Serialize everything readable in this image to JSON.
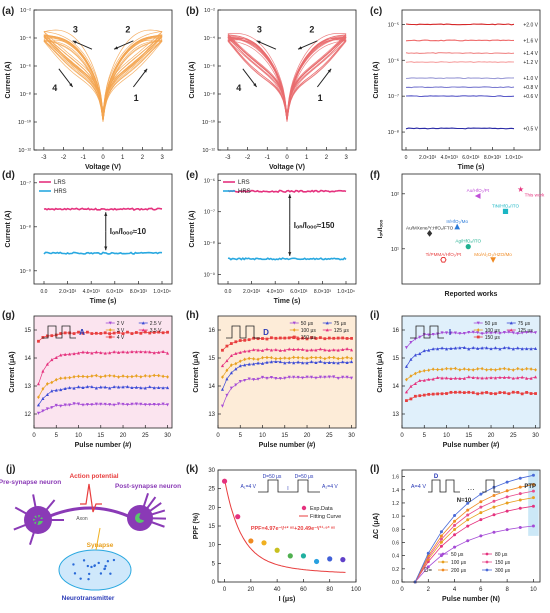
{
  "panels": {
    "a": {
      "letter": "(a)",
      "type": "iv-loop",
      "color": "#f3a450",
      "xlabel": "Voltage (V)",
      "ylabel": "Current (A)",
      "xlim": [
        -3.5,
        3.5
      ],
      "xticks": [
        "-3",
        "-2",
        "-1",
        "0",
        "1",
        "2",
        "3"
      ],
      "ylog_exp": [
        -12,
        -2
      ],
      "ytick_labels": [
        "10⁻¹²",
        "10⁻¹⁰",
        "10⁻⁸",
        "10⁻⁶",
        "10⁻⁴",
        "10⁻²"
      ],
      "arrows": [
        "1",
        "2",
        "3",
        "4"
      ]
    },
    "b": {
      "letter": "(b)",
      "type": "iv-loop",
      "color": "#e96c6e",
      "xlabel": "Voltage (V)",
      "ylabel": "Current (A)",
      "xlim": [
        -3.5,
        3.5
      ],
      "xticks": [
        "-3",
        "-2",
        "-1",
        "0",
        "1",
        "2",
        "3"
      ],
      "ylog_exp": [
        -12,
        -2
      ],
      "ytick_labels": [
        "10⁻¹²",
        "10⁻¹⁰",
        "10⁻⁸",
        "10⁻⁶",
        "10⁻⁴",
        "10⁻²"
      ],
      "arrows": [
        "1",
        "2",
        "3",
        "4"
      ]
    },
    "c": {
      "letter": "(c)",
      "type": "retention-multi",
      "xlabel": "Time (s)",
      "ylabel": "Current (A)",
      "xticks": [
        "0",
        "2.0×10³",
        "4.0×10³",
        "6.0×10³",
        "8.0×10³",
        "1.0×10⁴"
      ],
      "ytick_labels": [
        "10⁻⁸",
        "10⁻⁷",
        "10⁻⁶",
        "10⁻⁵"
      ],
      "ylog_exp": [
        -8.5,
        -4.6
      ],
      "levels": [
        {
          "label": "+2.0 V",
          "exp": -5.0,
          "color": "#d62728"
        },
        {
          "label": "+1.6 V",
          "exp": -5.45,
          "color": "#ef6b6b"
        },
        {
          "label": "+1.4 V",
          "exp": -5.8,
          "color": "#f08a8a"
        },
        {
          "label": "+1.2 V",
          "exp": -6.05,
          "color": "#f6a2a2"
        },
        {
          "label": "+1.0 V",
          "exp": -6.5,
          "color": "#9b9bd6"
        },
        {
          "label": "+0.8 V",
          "exp": -6.75,
          "color": "#7b7bd0"
        },
        {
          "label": "+0.6 V",
          "exp": -7.0,
          "color": "#5a5ac8"
        },
        {
          "label": "+0.5 V",
          "exp": -7.9,
          "color": "#2a2aa6"
        }
      ]
    },
    "d": {
      "letter": "(d)",
      "type": "retention-two",
      "xlabel": "Time (s)",
      "ylabel": "Current (A)",
      "xticks": [
        "0.0",
        "2.0×10³",
        "4.0×10³",
        "6.0×10³",
        "8.0×10³",
        "1.0×10⁴"
      ],
      "ytick_labels": [
        "10⁻⁹",
        "10⁻⁸",
        "10⁻⁷"
      ],
      "ylog_exp": [
        -9.3,
        -6.8
      ],
      "series": [
        {
          "name": "LRS",
          "exp": -7.6,
          "color": "#e5327e"
        },
        {
          "name": "HRS",
          "exp": -8.6,
          "color": "#29a8e0"
        }
      ],
      "ratio_label": "Iₒₙ/Iₒₒₒ≈10"
    },
    "e": {
      "letter": "(e)",
      "type": "retention-two",
      "xlabel": "Time (s)",
      "ylabel": "Current (A)",
      "xticks": [
        "0.0",
        "2.0×10³",
        "4.0×10³",
        "6.0×10³",
        "8.0×10³",
        "1.0×10⁴"
      ],
      "ytick_labels": [
        "10⁻⁹",
        "10⁻⁸",
        "10⁻⁷",
        "10⁻⁶"
      ],
      "ylog_exp": [
        -9.3,
        -5.8
      ],
      "series": [
        {
          "name": "LRS",
          "exp": -6.35,
          "color": "#e5327e"
        },
        {
          "name": "HRS",
          "exp": -8.5,
          "color": "#29a8e0"
        }
      ],
      "ratio_label": "Iₒₙ/Iₒₒₒ≈150"
    },
    "f": {
      "letter": "(f)",
      "type": "benchmark",
      "xlabel": "Reported works",
      "ylabel": "Iₒₙ/Iₒₒₒ",
      "ytick_labels": [
        "10¹",
        "10²"
      ],
      "points": [
        {
          "label": "This work",
          "x": 0.86,
          "y": 0.86,
          "color": "#e5327e",
          "marker": "star"
        },
        {
          "label": "Au/HfO₂/Pt",
          "x": 0.55,
          "y": 0.8,
          "color": "#c050d8",
          "marker": "triangle-left"
        },
        {
          "label": "TiN/HfO₂/ITO",
          "x": 0.75,
          "y": 0.66,
          "color": "#1bb6c4",
          "marker": "square"
        },
        {
          "label": "Ir/HfO₂/Mo",
          "x": 0.4,
          "y": 0.52,
          "color": "#2a7ad8",
          "marker": "triangle"
        },
        {
          "label": "Au/MXene/Y:HfO₂/FTO",
          "x": 0.2,
          "y": 0.46,
          "color": "#333333",
          "marker": "diamond"
        },
        {
          "label": "Ag/HfO₂/ITO",
          "x": 0.48,
          "y": 0.34,
          "color": "#20b090",
          "marker": "circle"
        },
        {
          "label": "Ti/PMMA/HfO₂/Pt",
          "x": 0.3,
          "y": 0.22,
          "color": "#e83e3e",
          "marker": "hexagon"
        },
        {
          "label": "Mo/Al₂O₃/HZO/Mo",
          "x": 0.66,
          "y": 0.22,
          "color": "#f08a22",
          "marker": "triangle-down"
        }
      ]
    },
    "g": {
      "letter": "(g)",
      "type": "pulse",
      "xlabel": "Pulse number (#)",
      "ylabel": "Current (μA)",
      "xlim": [
        0,
        31
      ],
      "xticks": [
        "0",
        "5",
        "10",
        "15",
        "20",
        "25",
        "30"
      ],
      "ylim": [
        11.5,
        15.5
      ],
      "yticks": [
        "12",
        "13",
        "14",
        "15"
      ],
      "inset_label": "A",
      "series": [
        {
          "name": "2 V",
          "color": "#a54bd6",
          "marker": "triangle-down",
          "start": 12.0,
          "end": 12.35
        },
        {
          "name": "2.5 V",
          "color": "#3c4bd6",
          "marker": "triangle",
          "start": 12.35,
          "end": 12.95
        },
        {
          "name": "3 V",
          "color": "#e8a020",
          "marker": "diamond",
          "start": 12.6,
          "end": 13.35
        },
        {
          "name": "3.5 V",
          "color": "#e5327e",
          "marker": "triangle",
          "start": 13.1,
          "end": 14.2
        },
        {
          "name": "4 V",
          "color": "#e83e3e",
          "marker": "square",
          "start": 14.6,
          "end": 14.9
        }
      ]
    },
    "h": {
      "letter": "(h)",
      "type": "pulse",
      "xlabel": "Pulse number (#)",
      "ylabel": "Current (μA)",
      "xlim": [
        0,
        31
      ],
      "xticks": [
        "0",
        "5",
        "10",
        "15",
        "20",
        "25",
        "30"
      ],
      "ylim": [
        12.5,
        16.5
      ],
      "yticks": [
        "13",
        "14",
        "15",
        "16"
      ],
      "inset_label": "D",
      "series": [
        {
          "name": "50 μs",
          "color": "#a54bd6",
          "marker": "triangle-down",
          "start": 13.3,
          "end": 14.3
        },
        {
          "name": "75 μs",
          "color": "#3c4bd6",
          "marker": "triangle",
          "start": 13.9,
          "end": 14.85
        },
        {
          "name": "100 μs",
          "color": "#e8a020",
          "marker": "diamond",
          "start": 14.3,
          "end": 15.0
        },
        {
          "name": "125 μs",
          "color": "#e5327e",
          "marker": "triangle",
          "start": 14.7,
          "end": 15.3
        },
        {
          "name": "150 μs",
          "color": "#e83e3e",
          "marker": "square",
          "start": 15.3,
          "end": 15.7
        }
      ]
    },
    "i": {
      "letter": "(i)",
      "type": "pulse",
      "xlabel": "Pulse number (#)",
      "ylabel": "Current (μA)",
      "xlim": [
        0,
        31
      ],
      "xticks": [
        "0",
        "5",
        "10",
        "15",
        "20",
        "25",
        "30"
      ],
      "ylim": [
        12.5,
        16.5
      ],
      "yticks": [
        "13",
        "14",
        "15",
        "16"
      ],
      "inset_label": "I",
      "series": [
        {
          "name": "50 μs",
          "color": "#a54bd6",
          "marker": "triangle-down",
          "start": 15.4,
          "end": 15.9
        },
        {
          "name": "75 μs",
          "color": "#3c4bd6",
          "marker": "triangle",
          "start": 14.7,
          "end": 15.35
        },
        {
          "name": "100 μs",
          "color": "#e8a020",
          "marker": "diamond",
          "start": 14.2,
          "end": 14.6
        },
        {
          "name": "125 μs",
          "color": "#e5327e",
          "marker": "triangle",
          "start": 13.8,
          "end": 14.3
        },
        {
          "name": "150 μs",
          "color": "#e83e3e",
          "marker": "square",
          "start": 13.45,
          "end": 13.75
        }
      ]
    },
    "j": {
      "letter": "(j)",
      "type": "schematic",
      "labels": {
        "pre": "Pre-synapse neuron",
        "post": "Post-synapse neuron",
        "ap": "Action potential",
        "axon": "Axon",
        "synapse": "Synapse",
        "nt": "Neurotransmitter"
      }
    },
    "k": {
      "letter": "(k)",
      "type": "ppf",
      "xlabel": "I (μs)",
      "ylabel": "PPF (%)",
      "xlim": [
        -5,
        100
      ],
      "xticks": [
        "0",
        "20",
        "40",
        "60",
        "80",
        "100"
      ],
      "ylim": [
        0,
        30
      ],
      "yticks": [
        "0",
        "5",
        "10",
        "15",
        "20",
        "25",
        "30"
      ],
      "points": [
        {
          "x": 0,
          "y": 27.0,
          "color": "#e5327e"
        },
        {
          "x": 10,
          "y": 17.5,
          "color": "#e5327e"
        },
        {
          "x": 20,
          "y": 11.0,
          "color": "#f08a22"
        },
        {
          "x": 30,
          "y": 10.5,
          "color": "#f0b020"
        },
        {
          "x": 40,
          "y": 8.5,
          "color": "#c8c020"
        },
        {
          "x": 50,
          "y": 7.0,
          "color": "#50b050"
        },
        {
          "x": 60,
          "y": 7.0,
          "color": "#20b0a0"
        },
        {
          "x": 70,
          "y": 5.5,
          "color": "#28a0e0"
        },
        {
          "x": 80,
          "y": 6.2,
          "color": "#4060d8"
        },
        {
          "x": 90,
          "y": 6.0,
          "color": "#6040c8"
        }
      ],
      "fit": {
        "A": 4.97,
        "B": 20.49,
        "tau1": 42,
        "tau2": 11.93
      },
      "legend": [
        "Exp.Data",
        "Fitting Curve"
      ],
      "equation": "PPF=4.97e⁻ᴵ/⁴² ᵘˢ+20.49e⁻ᴵ/¹¹·⁹³ ᵘˢ",
      "inset": {
        "a1": "A₁=4 V",
        "d1": "D=50 μs",
        "d2": "D=50 μs",
        "a2": "A₂=4 V",
        "i": "I"
      }
    },
    "l": {
      "letter": "(l)",
      "type": "ptp",
      "xlabel": "Pulse number (N)",
      "ylabel": "ΔC (μA)",
      "xlim": [
        0,
        10.5
      ],
      "xticks": [
        "0",
        "2",
        "4",
        "6",
        "8",
        "10"
      ],
      "ylim": [
        0,
        1.7
      ],
      "yticks": [
        "0.0",
        "0.2",
        "0.4",
        "0.6",
        "0.8",
        "1.0",
        "1.2",
        "1.4",
        "1.6"
      ],
      "inset": {
        "a": "A=4 V",
        "d": "D",
        "n": "N=10",
        "dots": "…",
        "ptp": "PTP"
      },
      "legend_prefix": "D=",
      "series": [
        {
          "name": "50 μs",
          "color": "#a54bd6",
          "end": 0.85
        },
        {
          "name": "80 μs",
          "color": "#e5327e",
          "end": 1.15
        },
        {
          "name": "100 μs",
          "color": "#e8a020",
          "end": 1.28
        },
        {
          "name": "150 μs",
          "color": "#e84c8c",
          "end": 1.38
        },
        {
          "name": "200 μs",
          "color": "#f08a22",
          "end": 1.48
        },
        {
          "name": "300 μs",
          "color": "#4a6ad8",
          "end": 1.62
        }
      ]
    }
  }
}
